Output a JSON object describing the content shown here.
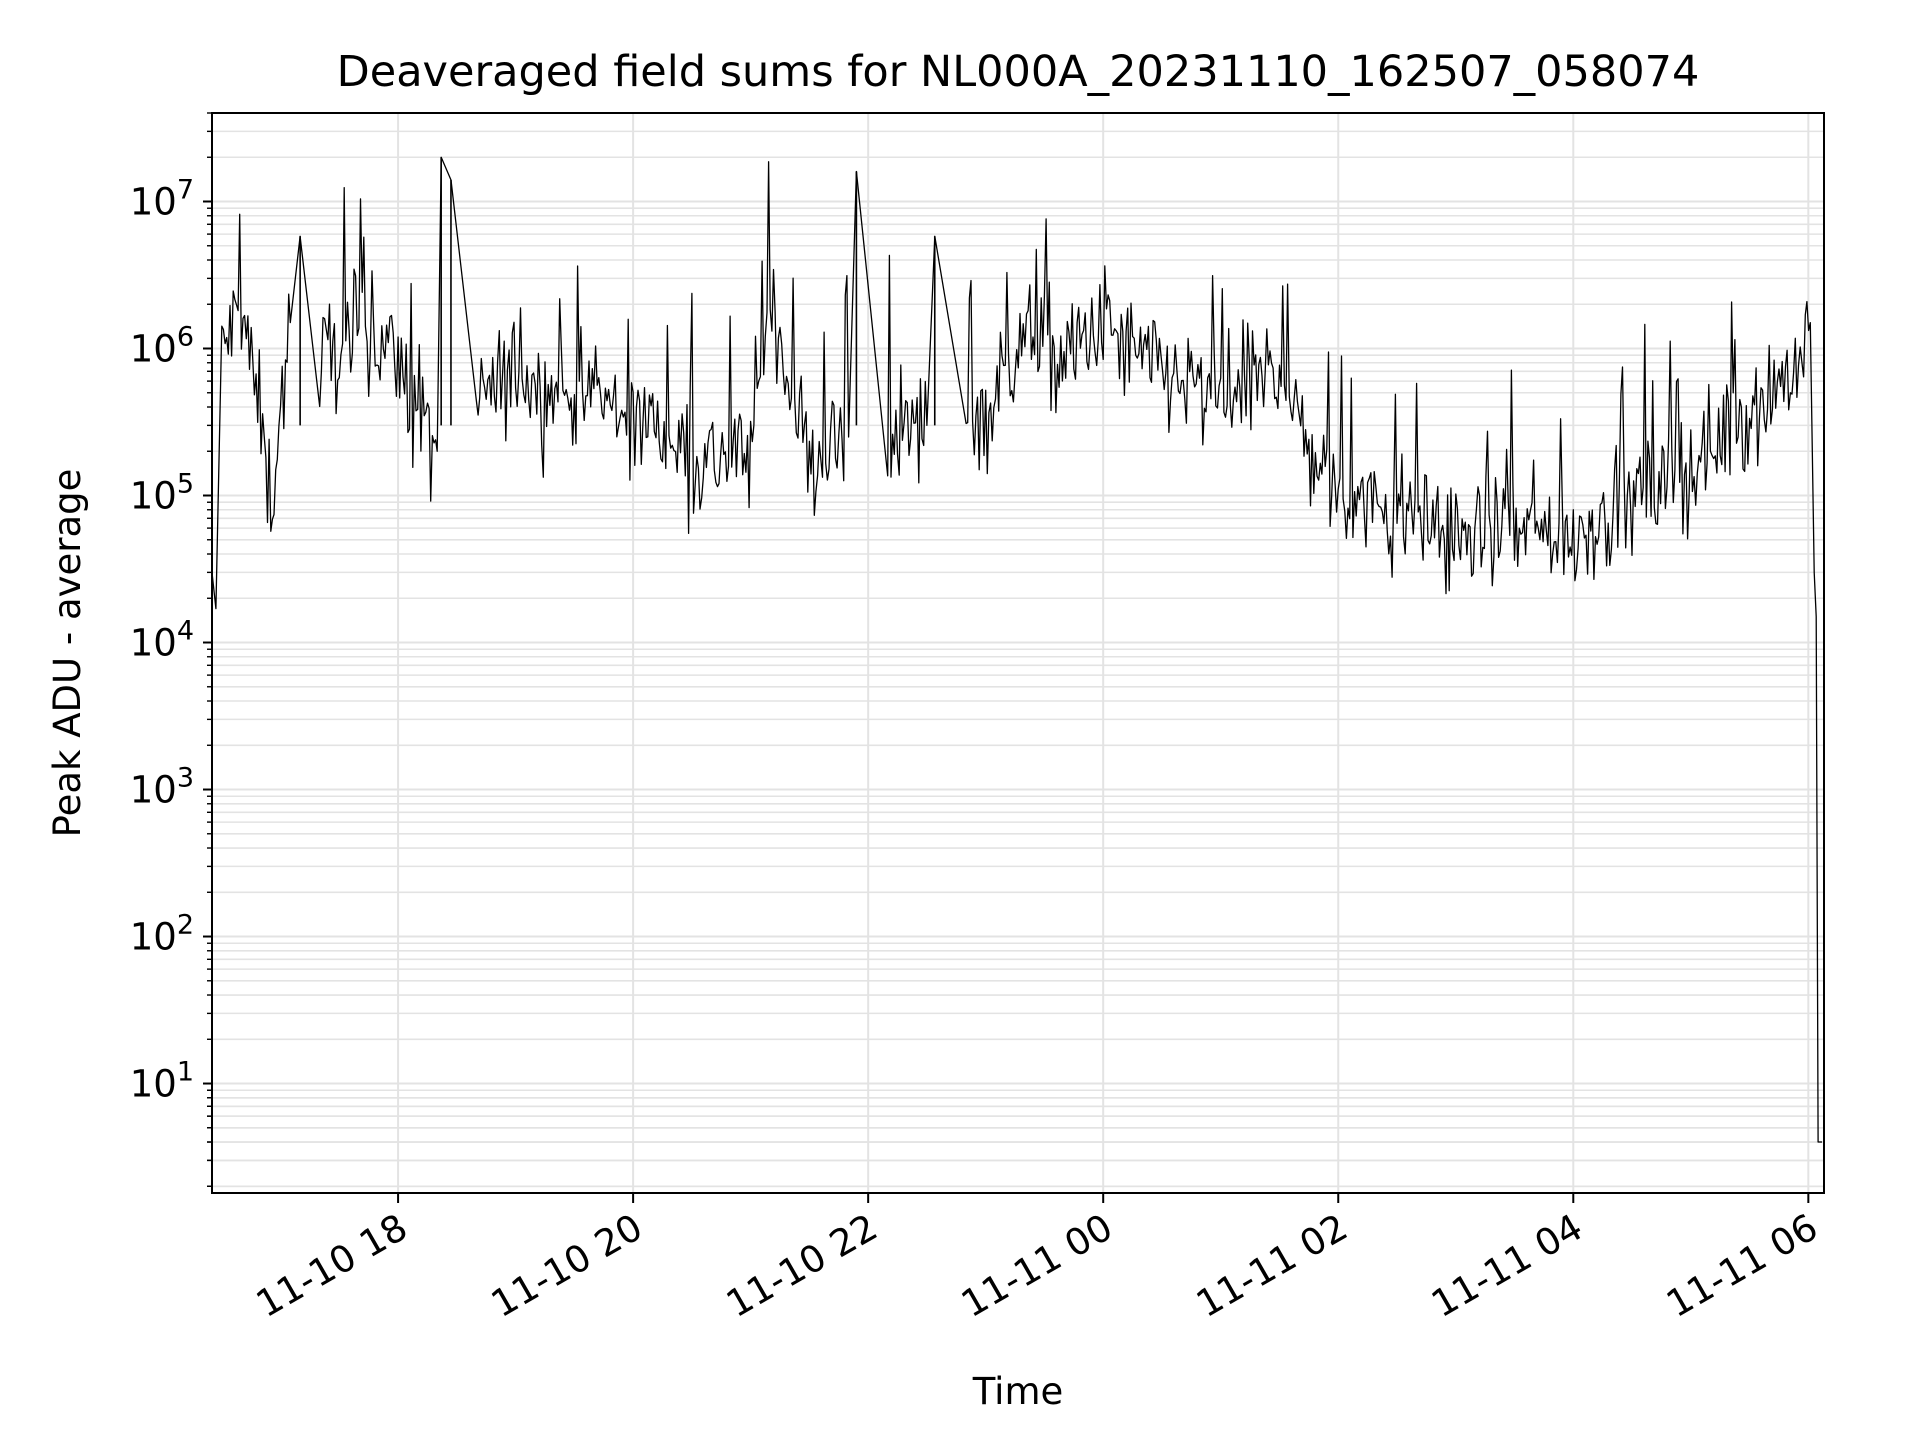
{
  "chart_data": {
    "type": "line",
    "title": "Deaveraged field sums for NL000A_20231110_162507_058074",
    "xlabel": "Time",
    "ylabel": "Peak ADU - average",
    "xscale": "date",
    "yscale": "log",
    "xlim": [
      "2023-11-10 16:25",
      "2023-11-11 06:08"
    ],
    "ylim": [
      1.8,
      40000000
    ],
    "grid": true,
    "minor_grid": true,
    "line_color": "#000000",
    "grid_color": "#e3e3e3",
    "x_ticks": [
      {
        "value": "2023-11-10 18:00",
        "label": "11-10 18"
      },
      {
        "value": "2023-11-10 20:00",
        "label": "11-10 20"
      },
      {
        "value": "2023-11-10 22:00",
        "label": "11-10 22"
      },
      {
        "value": "2023-11-11 00:00",
        "label": "11-11 00"
      },
      {
        "value": "2023-11-11 02:00",
        "label": "11-11 02"
      },
      {
        "value": "2023-11-11 04:00",
        "label": "11-11 04"
      },
      {
        "value": "2023-11-11 06:00",
        "label": "11-11 06"
      }
    ],
    "y_ticks": [
      {
        "value": 10,
        "base": "10",
        "exp": "1"
      },
      {
        "value": 100,
        "base": "10",
        "exp": "2"
      },
      {
        "value": 1000,
        "base": "10",
        "exp": "3"
      },
      {
        "value": 10000,
        "base": "10",
        "exp": "4"
      },
      {
        "value": 100000,
        "base": "10",
        "exp": "5"
      },
      {
        "value": 1000000,
        "base": "10",
        "exp": "6"
      },
      {
        "value": 10000000,
        "base": "10",
        "exp": "7"
      }
    ],
    "series": [
      {
        "sampled": true,
        "points": [
          [
            "2023-11-10 16:25",
            30000
          ],
          [
            "2023-11-10 16:27",
            17000
          ],
          [
            "2023-11-10 16:30",
            900000
          ],
          [
            "2023-11-10 16:40",
            2000000
          ],
          [
            "2023-11-10 16:50",
            300000
          ],
          [
            "2023-11-10 16:55",
            90000
          ],
          [
            "2023-11-10 17:05",
            1500000
          ],
          [
            "2023-11-10 17:10",
            5800000
          ],
          [
            "2023-11-10 17:20",
            800000
          ],
          [
            "2023-11-10 17:40",
            1300000
          ],
          [
            "2023-11-10 18:00",
            900000
          ],
          [
            "2023-11-10 18:10",
            300000
          ],
          [
            "2023-11-10 18:20",
            200000
          ],
          [
            "2023-11-10 18:22",
            20000000
          ],
          [
            "2023-11-10 18:27",
            14000000
          ],
          [
            "2023-11-10 18:40",
            400000
          ],
          [
            "2023-11-10 19:00",
            700000
          ],
          [
            "2023-11-10 19:20",
            500000
          ],
          [
            "2023-11-10 19:40",
            450000
          ],
          [
            "2023-11-10 20:00",
            350000
          ],
          [
            "2023-11-10 20:20",
            250000
          ],
          [
            "2023-11-10 20:35",
            170000
          ],
          [
            "2023-11-10 21:00",
            200000
          ],
          [
            "2023-11-10 21:10",
            2300000
          ],
          [
            "2023-11-10 21:30",
            160000
          ],
          [
            "2023-11-10 21:50",
            250000
          ],
          [
            "2023-11-10 21:54",
            16000000
          ],
          [
            "2023-11-10 22:10",
            250000
          ],
          [
            "2023-11-10 22:30",
            300000
          ],
          [
            "2023-11-10 22:34",
            5800000
          ],
          [
            "2023-11-10 22:50",
            400000
          ],
          [
            "2023-11-10 23:00",
            350000
          ],
          [
            "2023-11-10 23:20",
            1300000
          ],
          [
            "2023-11-10 23:40",
            800000
          ],
          [
            "2023-11-11 00:00",
            1500000
          ],
          [
            "2023-11-11 00:15",
            900000
          ],
          [
            "2023-11-11 00:40",
            600000
          ],
          [
            "2023-11-11 01:00",
            400000
          ],
          [
            "2023-11-11 01:30",
            800000
          ],
          [
            "2023-11-11 01:45",
            200000
          ],
          [
            "2023-11-11 02:00",
            110000
          ],
          [
            "2023-11-11 02:20",
            80000
          ],
          [
            "2023-11-11 02:40",
            70000
          ],
          [
            "2023-11-11 03:00",
            55000
          ],
          [
            "2023-11-11 03:30",
            55000
          ],
          [
            "2023-11-11 04:00",
            55000
          ],
          [
            "2023-11-11 04:30",
            90000
          ],
          [
            "2023-11-11 05:00",
            150000
          ],
          [
            "2023-11-11 05:20",
            300000
          ],
          [
            "2023-11-11 05:40",
            500000
          ],
          [
            "2023-11-11 05:55",
            800000
          ],
          [
            "2023-11-11 06:01",
            1500000
          ],
          [
            "2023-11-11 06:03",
            30000
          ],
          [
            "2023-11-11 06:04",
            15000
          ],
          [
            "2023-11-11 06:05",
            4
          ],
          [
            "2023-11-11 06:07",
            4
          ]
        ]
      }
    ]
  }
}
